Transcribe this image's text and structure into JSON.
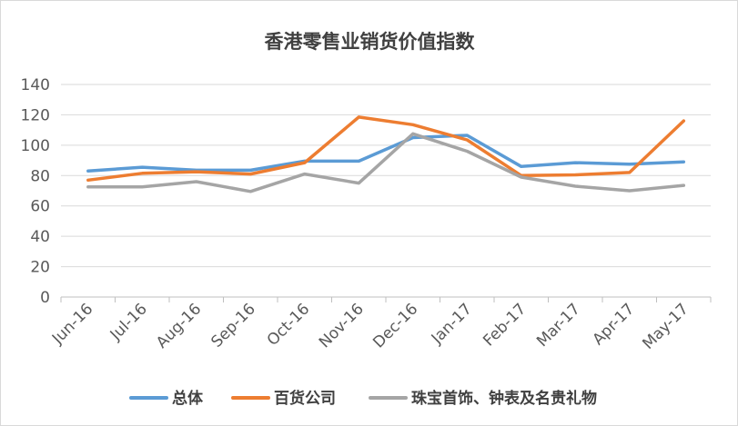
{
  "chart_data": {
    "type": "line",
    "title": "香港零售业销货价值指数",
    "xlabel": "",
    "ylabel": "",
    "categories": [
      "Jun-16",
      "Jul-16",
      "Aug-16",
      "Sep-16",
      "Oct-16",
      "Nov-16",
      "Dec-16",
      "Jan-17",
      "Feb-17",
      "Mar-17",
      "Apr-17",
      "May-17"
    ],
    "ylim": [
      0,
      140
    ],
    "yticks": [
      "0",
      "20",
      "40",
      "60",
      "80",
      "100",
      "120",
      "140"
    ],
    "grid": true,
    "legend": "bottom",
    "series": [
      {
        "name": "总体",
        "color": "#5b9bd5",
        "values": [
          83,
          85.5,
          83.5,
          83.5,
          89.5,
          89.5,
          105,
          106.5,
          86,
          88.5,
          87.5,
          89
        ]
      },
      {
        "name": "百货公司",
        "color": "#ed7d31",
        "values": [
          77,
          81.5,
          82.5,
          81,
          88.5,
          118.5,
          113.5,
          103.5,
          80,
          80.5,
          82,
          116
        ]
      },
      {
        "name": "珠宝首饰、钟表及名贵礼物",
        "color": "#a5a5a5",
        "values": [
          72.5,
          72.5,
          76,
          69.5,
          81,
          75,
          107.5,
          96,
          79,
          73,
          70,
          73.5
        ]
      }
    ]
  }
}
